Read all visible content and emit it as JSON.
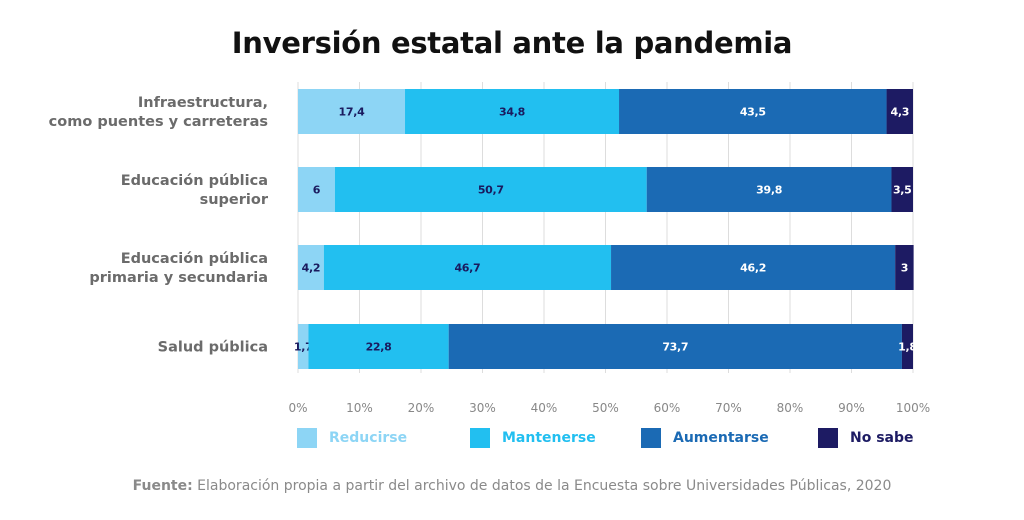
{
  "chart_data": {
    "type": "bar",
    "orientation": "horizontal",
    "stacked": true,
    "title": "Inversión estatal ante la pandemia",
    "categories": [
      [
        "Infraestructura,",
        "como puentes y carreteras"
      ],
      [
        "Educación pública",
        "superior"
      ],
      [
        "Educación pública",
        "primaria y secundaria"
      ],
      [
        "Salud pública"
      ]
    ],
    "series": [
      {
        "name": "Reducirse",
        "values": [
          17.4,
          6,
          4.2,
          1.7
        ],
        "labels": [
          "17,4",
          "6",
          "4,2",
          "1,7"
        ],
        "color": "#8dd5f5",
        "legend_color": "#8dd5f5",
        "label_color": "#1a1a5e"
      },
      {
        "name": "Mantenerse",
        "values": [
          34.8,
          50.7,
          46.7,
          22.8
        ],
        "labels": [
          "34,8",
          "50,7",
          "46,7",
          "22,8"
        ],
        "color": "#22bff0",
        "legend_color": "#22bff0",
        "label_color": "#1a1a5e"
      },
      {
        "name": "Aumentarse",
        "values": [
          43.5,
          39.8,
          46.2,
          73.7
        ],
        "labels": [
          "43,5",
          "39,8",
          "46,2",
          "73,7"
        ],
        "color": "#1b6ab4",
        "legend_color": "#1b6ab4",
        "label_color": "#ffffff"
      },
      {
        "name": "No sabe",
        "values": [
          4.3,
          3.5,
          3,
          1.8
        ],
        "labels": [
          "4,3",
          "3,5",
          "3",
          "1,8"
        ],
        "color": "#1d1b63",
        "legend_color": "#1d1b63",
        "label_color": "#ffffff"
      }
    ],
    "xlim": [
      0,
      100
    ],
    "xticks": [
      "0%",
      "10%",
      "20%",
      "30%",
      "40%",
      "50%",
      "60%",
      "70%",
      "80%",
      "90%",
      "100%"
    ],
    "grid": true,
    "legend_position": "bottom"
  },
  "source": {
    "label": "Fuente:",
    "text": " Elaboración propia a partir del archivo de datos de la Encuesta sobre Universidades Públicas, 2020"
  }
}
